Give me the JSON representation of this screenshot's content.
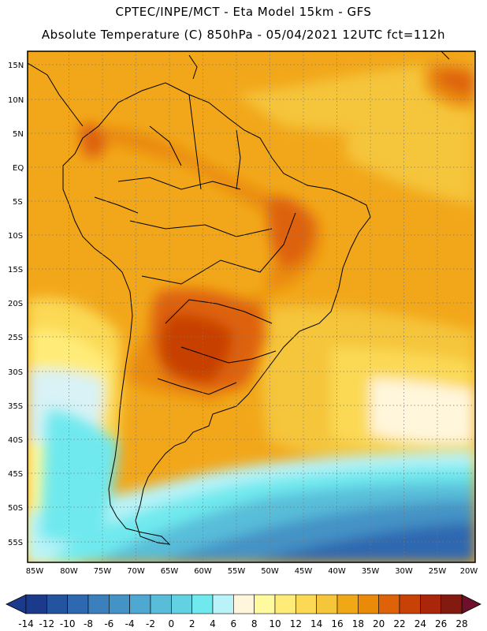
{
  "title_line1": "CPTEC/INPE/MCT -  Eta Model 15km - GFS",
  "title_line2": "Absolute Temperature (C) 850hPa - 05/04/2021 12UTC fct=112h",
  "lat_labels": [
    "15N",
    "10N",
    "5N",
    "EQ",
    "5S",
    "10S",
    "15S",
    "20S",
    "25S",
    "30S",
    "35S",
    "40S",
    "45S",
    "50S",
    "55S"
  ],
  "lon_labels": [
    "85W",
    "80W",
    "75W",
    "70W",
    "65W",
    "60W",
    "55W",
    "50W",
    "45W",
    "40W",
    "35W",
    "30W",
    "25W",
    "20W"
  ],
  "colorbar": {
    "labels": [
      "-14",
      "-12",
      "-10",
      "-8",
      "-6",
      "-4",
      "-2",
      "0",
      "2",
      "4",
      "6",
      "8",
      "10",
      "12",
      "14",
      "16",
      "18",
      "20",
      "22",
      "24",
      "26",
      "28"
    ],
    "colors": [
      "#1b3a8c",
      "#24539f",
      "#2e68b0",
      "#3b7fbd",
      "#4493c6",
      "#4ea8d1",
      "#59bdd9",
      "#62d2e2",
      "#6fe9ee",
      "#b9f3f8",
      "#fff6dc",
      "#fffa9e",
      "#ffec78",
      "#fbd955",
      "#f5c53a",
      "#f0a915",
      "#ea8a09",
      "#de6208",
      "#c84106",
      "#a9260a",
      "#831a10"
    ],
    "under_color": "#1b3a8c",
    "over_color": "#6e1029"
  },
  "colors": {
    "background_orange": "#f2a71a",
    "frame": "#000000"
  }
}
